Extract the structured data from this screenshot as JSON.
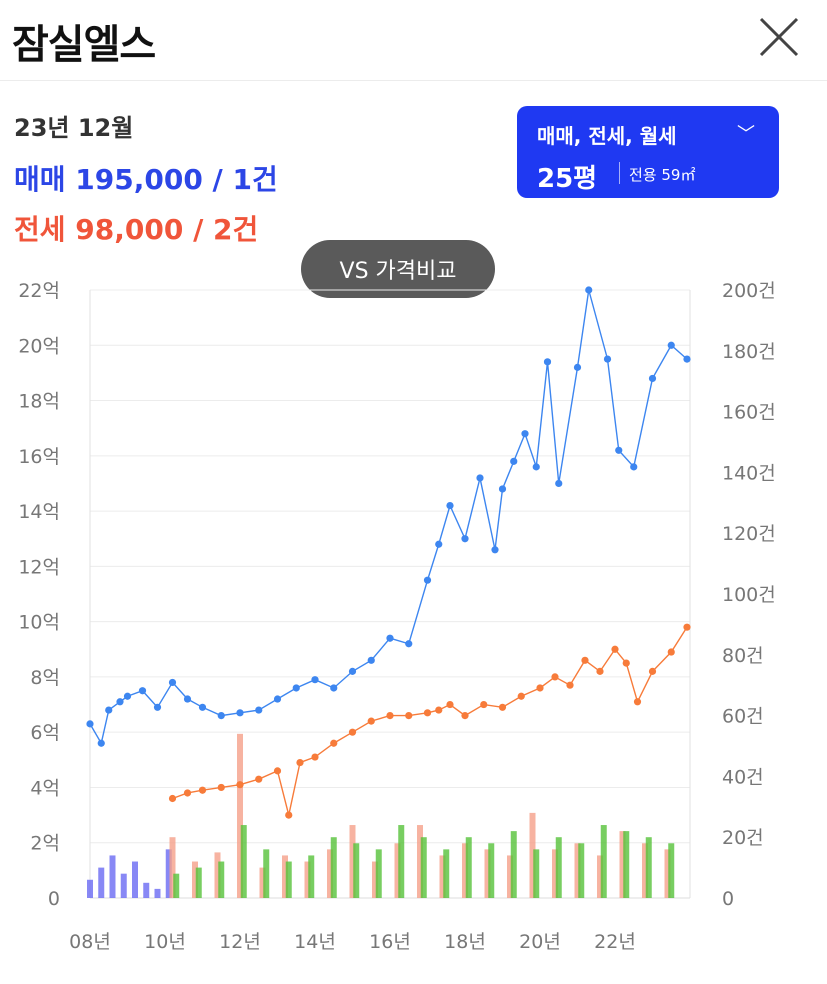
{
  "header": {
    "title": "잠실엘스"
  },
  "summary": {
    "date": "23년 12월",
    "trade": "매매 195,000 / 1건",
    "jeonse": "전세 98,000 / 2건"
  },
  "filter": {
    "label": "매매, 전세, 월세",
    "size": "25평",
    "area": "전용 59㎡"
  },
  "compare_button": {
    "label": "VS 가격비교"
  },
  "colors": {
    "trade": "#3d86f0",
    "jeonse": "#f77b3a",
    "filter_bg": "#1f39f2",
    "volume_trade": "#6a6af2",
    "volume_jeonse": "#f5a08a",
    "volume_wolse": "#56c23a"
  },
  "icons": {
    "close": "close-icon",
    "chevron": "chevron-down-icon"
  },
  "chart_data": {
    "type": "line",
    "title": "",
    "legend": "none",
    "grid": true,
    "x_ticks": [
      "08년",
      "10년",
      "12년",
      "14년",
      "16년",
      "18년",
      "20년",
      "22년"
    ],
    "xlim": [
      2008,
      2024
    ],
    "y_left_ticks": [
      "0",
      "2억",
      "4억",
      "6억",
      "8억",
      "10억",
      "12억",
      "14억",
      "16억",
      "18억",
      "20억",
      "22억"
    ],
    "y_left_lim": [
      0,
      22
    ],
    "y_right_ticks": [
      "0",
      "20건",
      "40건",
      "60건",
      "80건",
      "100건",
      "120건",
      "140건",
      "160건",
      "180건",
      "200건"
    ],
    "y_right_lim": [
      0,
      200
    ],
    "series": [
      {
        "key": "trade",
        "x": [
          2008.0,
          2008.3,
          2008.5,
          2008.8,
          2009.0,
          2009.4,
          2009.8,
          2010.2,
          2010.6,
          2011.0,
          2011.5,
          2012.0,
          2012.5,
          2013.0,
          2013.5,
          2014.0,
          2014.5,
          2015.0,
          2015.5,
          2016.0,
          2016.5,
          2017.0,
          2017.3,
          2017.6,
          2018.0,
          2018.4,
          2018.8,
          2019.0,
          2019.3,
          2019.6,
          2019.9,
          2020.2,
          2020.5,
          2021.0,
          2021.3,
          2021.8,
          2022.1,
          2022.5,
          2023.0,
          2023.5,
          2023.92
        ],
        "y": [
          6.3,
          5.6,
          6.8,
          7.1,
          7.3,
          7.5,
          6.9,
          7.8,
          7.2,
          6.9,
          6.6,
          6.7,
          6.8,
          7.2,
          7.6,
          7.9,
          7.6,
          8.2,
          8.6,
          9.4,
          9.2,
          11.5,
          12.8,
          14.2,
          13.0,
          15.2,
          12.6,
          14.8,
          15.8,
          16.8,
          15.6,
          19.4,
          15.0,
          19.2,
          22.0,
          19.5,
          16.2,
          15.6,
          18.8,
          20.0,
          19.5
        ]
      },
      {
        "key": "jeonse",
        "x": [
          2010.2,
          2010.6,
          2011.0,
          2011.5,
          2012.0,
          2012.5,
          2013.0,
          2013.3,
          2013.6,
          2014.0,
          2014.5,
          2015.0,
          2015.5,
          2016.0,
          2016.5,
          2017.0,
          2017.3,
          2017.6,
          2018.0,
          2018.5,
          2019.0,
          2019.5,
          2020.0,
          2020.4,
          2020.8,
          2021.2,
          2021.6,
          2022.0,
          2022.3,
          2022.6,
          2023.0,
          2023.5,
          2023.92
        ],
        "y": [
          3.6,
          3.8,
          3.9,
          4.0,
          4.1,
          4.3,
          4.6,
          3.0,
          4.9,
          5.1,
          5.6,
          6.0,
          6.4,
          6.6,
          6.6,
          6.7,
          6.8,
          7.0,
          6.6,
          7.0,
          6.9,
          7.3,
          7.6,
          8.0,
          7.7,
          8.6,
          8.2,
          9.0,
          8.5,
          7.1,
          8.2,
          8.9,
          9.8
        ]
      }
    ],
    "volume_series": [
      {
        "key": "volume_trade",
        "x": [
          2008.0,
          2008.3,
          2008.6,
          2008.9,
          2009.2,
          2009.5,
          2009.8,
          2010.1
        ],
        "y": [
          6,
          10,
          14,
          8,
          12,
          5,
          3,
          16
        ]
      },
      {
        "key": "volume_jeonse",
        "x": [
          2010.2,
          2010.8,
          2011.4,
          2012.0,
          2012.6,
          2013.2,
          2013.8,
          2014.4,
          2015.0,
          2015.6,
          2016.2,
          2016.8,
          2017.4,
          2018.0,
          2018.6,
          2019.2,
          2019.8,
          2020.4,
          2021.0,
          2021.6,
          2022.2,
          2022.8,
          2023.4
        ],
        "y": [
          20,
          12,
          15,
          54,
          10,
          14,
          12,
          16,
          24,
          12,
          18,
          24,
          14,
          18,
          16,
          14,
          28,
          16,
          18,
          14,
          22,
          18,
          16
        ]
      },
      {
        "key": "volume_wolse",
        "x": [
          2010.3,
          2010.9,
          2011.5,
          2012.1,
          2012.7,
          2013.3,
          2013.9,
          2014.5,
          2015.1,
          2015.7,
          2016.3,
          2016.9,
          2017.5,
          2018.1,
          2018.7,
          2019.3,
          2019.9,
          2020.5,
          2021.1,
          2021.7,
          2022.3,
          2022.9,
          2023.5
        ],
        "y": [
          8,
          10,
          12,
          24,
          16,
          12,
          14,
          20,
          18,
          16,
          24,
          20,
          16,
          20,
          18,
          22,
          16,
          20,
          18,
          24,
          22,
          20,
          18
        ]
      }
    ]
  }
}
